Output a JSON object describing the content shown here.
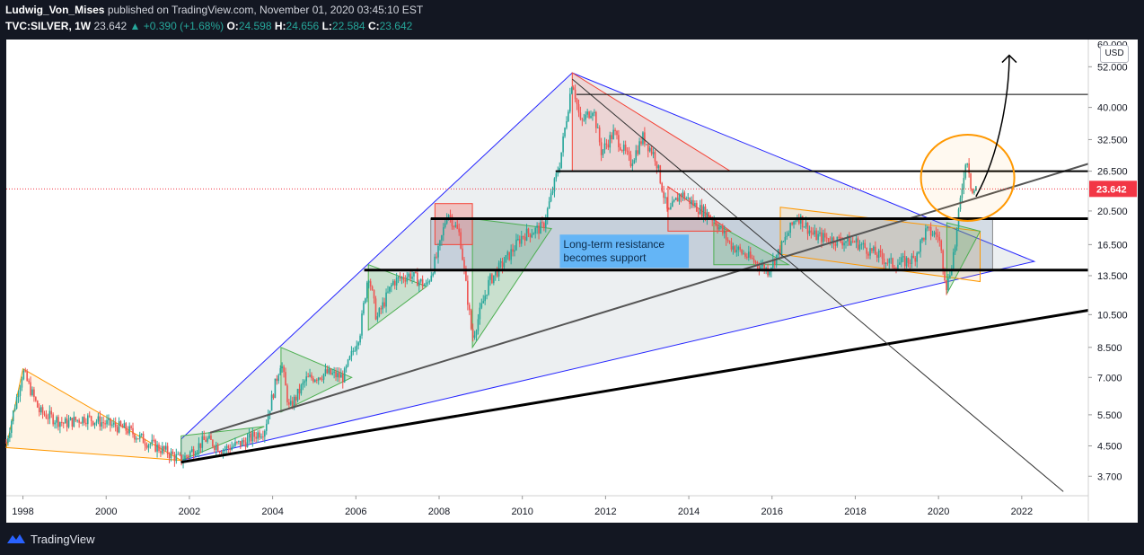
{
  "header": {
    "author": "Ludwig_Von_Mises",
    "published": "published on TradingView.com, November 01, 2020 03:45:10 EST",
    "symbol": "TVC:SILVER, 1W",
    "last": "23.642",
    "change": "▲ +0.390 (+1.68%)",
    "o_label": "O:",
    "o": "24.598",
    "h_label": "H:",
    "h": "24.656",
    "l_label": "L:",
    "l": "22.584",
    "c_label": "C:",
    "c": "23.642"
  },
  "footer": {
    "brand": "TradingView"
  },
  "colors": {
    "background": "#ffffff",
    "frame": "#131722",
    "up": "#26a69a",
    "down": "#ef5350",
    "last_price": "#f23645",
    "wedge": "#2424ff",
    "annotation_box": "#64b5f6"
  },
  "chart_data": {
    "type": "candlestick",
    "title": "TVC:SILVER, 1W",
    "scale": "log",
    "currency": "USD",
    "x_ticks": [
      "1998",
      "2000",
      "2002",
      "2004",
      "2006",
      "2008",
      "2010",
      "2012",
      "2014",
      "2016",
      "2018",
      "2020",
      "2022"
    ],
    "x_tick_years": [
      1998,
      2000,
      2002,
      2004,
      2006,
      2008,
      2010,
      2012,
      2014,
      2016,
      2018,
      2020,
      2022
    ],
    "y_ticks": [
      "52.000",
      "40.000",
      "32.500",
      "26.500",
      "20.500",
      "16.500",
      "13.500",
      "10.500",
      "8.500",
      "7.000",
      "5.500",
      "4.500",
      "3.700"
    ],
    "y_tick_values": [
      52,
      40,
      32.5,
      26.5,
      20.5,
      16.5,
      13.5,
      10.5,
      8.5,
      7,
      5.5,
      4.5,
      3.7
    ],
    "y_top_label": "60.000",
    "xlim": [
      1997.6,
      2023.6
    ],
    "ylim": [
      3.3,
      62
    ],
    "last_price": 23.642,
    "last_price_label": "23.642",
    "annotation": {
      "line1": "Long-term resistance",
      "line2": "becomes support"
    },
    "price_path": [
      [
        1997.6,
        4.6
      ],
      [
        1998.0,
        7.3
      ],
      [
        1998.4,
        5.6
      ],
      [
        1999.0,
        5.2
      ],
      [
        1999.5,
        5.4
      ],
      [
        2000.0,
        5.2
      ],
      [
        2000.5,
        5.0
      ],
      [
        2001.0,
        4.6
      ],
      [
        2001.5,
        4.3
      ],
      [
        2001.8,
        4.1
      ],
      [
        2002.4,
        4.7
      ],
      [
        2002.8,
        4.4
      ],
      [
        2003.3,
        4.6
      ],
      [
        2003.8,
        5.0
      ],
      [
        2004.2,
        7.8
      ],
      [
        2004.4,
        5.7
      ],
      [
        2004.8,
        6.9
      ],
      [
        2005.3,
        7.2
      ],
      [
        2005.7,
        7.0
      ],
      [
        2006.1,
        9.4
      ],
      [
        2006.3,
        13.8
      ],
      [
        2006.5,
        10.2
      ],
      [
        2006.9,
        13.0
      ],
      [
        2007.3,
        13.6
      ],
      [
        2007.7,
        12.6
      ],
      [
        2008.0,
        16.0
      ],
      [
        2008.2,
        20.5
      ],
      [
        2008.5,
        17.5
      ],
      [
        2008.8,
        9.0
      ],
      [
        2009.2,
        13.0
      ],
      [
        2009.7,
        15.5
      ],
      [
        2010.0,
        17.5
      ],
      [
        2010.5,
        18.5
      ],
      [
        2010.9,
        28.0
      ],
      [
        2011.2,
        48.0
      ],
      [
        2011.4,
        36.0
      ],
      [
        2011.7,
        40.0
      ],
      [
        2011.9,
        30.0
      ],
      [
        2012.2,
        34.0
      ],
      [
        2012.6,
        28.0
      ],
      [
        2012.9,
        33.0
      ],
      [
        2013.2,
        29.0
      ],
      [
        2013.5,
        20.0
      ],
      [
        2013.8,
        23.0
      ],
      [
        2014.2,
        21.0
      ],
      [
        2014.6,
        19.5
      ],
      [
        2015.0,
        16.5
      ],
      [
        2015.5,
        15.0
      ],
      [
        2015.9,
        14.0
      ],
      [
        2016.2,
        16.0
      ],
      [
        2016.6,
        20.0
      ],
      [
        2017.0,
        17.5
      ],
      [
        2017.5,
        17.0
      ],
      [
        2018.0,
        16.8
      ],
      [
        2018.5,
        15.5
      ],
      [
        2018.9,
        14.5
      ],
      [
        2019.4,
        15.0
      ],
      [
        2019.7,
        18.0
      ],
      [
        2020.0,
        17.5
      ],
      [
        2020.2,
        12.5
      ],
      [
        2020.4,
        16.5
      ],
      [
        2020.6,
        26.0
      ],
      [
        2020.7,
        29.0
      ],
      [
        2020.8,
        23.0
      ],
      [
        2020.9,
        23.64
      ]
    ]
  }
}
